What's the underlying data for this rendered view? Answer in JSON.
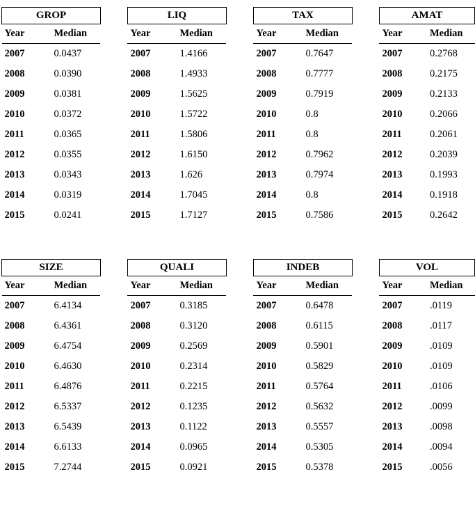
{
  "column_headers": {
    "year": "Year",
    "median": "Median"
  },
  "tables": [
    {
      "title": "GROP",
      "rows": [
        [
          "2007",
          "0.0437"
        ],
        [
          "2008",
          "0.0390"
        ],
        [
          "2009",
          "0.0381"
        ],
        [
          "2010",
          "0.0372"
        ],
        [
          "2011",
          "0.0365"
        ],
        [
          "2012",
          "0.0355"
        ],
        [
          "2013",
          "0.0343"
        ],
        [
          "2014",
          "0.0319"
        ],
        [
          "2015",
          "0.0241"
        ]
      ]
    },
    {
      "title": "LIQ",
      "rows": [
        [
          "2007",
          "1.4166"
        ],
        [
          "2008",
          "1.4933"
        ],
        [
          "2009",
          "1.5625"
        ],
        [
          "2010",
          "1.5722"
        ],
        [
          "2011",
          "1.5806"
        ],
        [
          "2012",
          "1.6150"
        ],
        [
          "2013",
          "1.626"
        ],
        [
          "2014",
          "1.7045"
        ],
        [
          "2015",
          "1.7127"
        ]
      ]
    },
    {
      "title": "TAX",
      "rows": [
        [
          "2007",
          "0.7647"
        ],
        [
          "2008",
          "0.7777"
        ],
        [
          "2009",
          "0.7919"
        ],
        [
          "2010",
          "0.8"
        ],
        [
          "2011",
          "0.8"
        ],
        [
          "2012",
          "0.7962"
        ],
        [
          "2013",
          "0.7974"
        ],
        [
          "2014",
          "0.8"
        ],
        [
          "2015",
          "0.7586"
        ]
      ]
    },
    {
      "title": "AMAT",
      "rows": [
        [
          "2007",
          "0.2768"
        ],
        [
          "2008",
          "0.2175"
        ],
        [
          "2009",
          "0.2133"
        ],
        [
          "2010",
          "0.2066"
        ],
        [
          "2011",
          "0.2061"
        ],
        [
          "2012",
          "0.2039"
        ],
        [
          "2013",
          "0.1993"
        ],
        [
          "2014",
          "0.1918"
        ],
        [
          "2015",
          "0.2642"
        ]
      ]
    },
    {
      "title": "SIZE",
      "rows": [
        [
          "2007",
          "6.4134"
        ],
        [
          "2008",
          "6.4361"
        ],
        [
          "2009",
          "6.4754"
        ],
        [
          "2010",
          "6.4630"
        ],
        [
          "2011",
          "6.4876"
        ],
        [
          "2012",
          "6.5337"
        ],
        [
          "2013",
          "6.5439"
        ],
        [
          "2014",
          "6.6133"
        ],
        [
          "2015",
          "7.2744"
        ]
      ]
    },
    {
      "title": "QUALI",
      "rows": [
        [
          "2007",
          "0.3185"
        ],
        [
          "2008",
          "0.3120"
        ],
        [
          "2009",
          "0.2569"
        ],
        [
          "2010",
          "0.2314"
        ],
        [
          "2011",
          "0.2215"
        ],
        [
          "2012",
          "0.1235"
        ],
        [
          "2013",
          "0.1122"
        ],
        [
          "2014",
          "0.0965"
        ],
        [
          "2015",
          "0.0921"
        ]
      ]
    },
    {
      "title": "INDEB",
      "rows": [
        [
          "2007",
          "0.6478"
        ],
        [
          "2008",
          "0.6115"
        ],
        [
          "2009",
          "0.5901"
        ],
        [
          "2010",
          "0.5829"
        ],
        [
          "2011",
          "0.5764"
        ],
        [
          "2012",
          "0.5632"
        ],
        [
          "2013",
          "0.5557"
        ],
        [
          "2014",
          "0.5305"
        ],
        [
          "2015",
          "0.5378"
        ]
      ]
    },
    {
      "title": "VOL",
      "rows": [
        [
          "2007",
          ".0119"
        ],
        [
          "2008",
          ".0117"
        ],
        [
          "2009",
          ".0109"
        ],
        [
          "2010",
          ".0109"
        ],
        [
          "2011",
          ".0106"
        ],
        [
          "2012",
          ".0099"
        ],
        [
          "2013",
          ".0098"
        ],
        [
          "2014",
          ".0094"
        ],
        [
          "2015",
          ".0056"
        ]
      ]
    }
  ],
  "layout": {
    "groups": [
      [
        0,
        1,
        2,
        3
      ],
      [
        4,
        5,
        6,
        7
      ]
    ]
  },
  "style": {
    "font_family": "Times New Roman",
    "font_size_pt": 11,
    "border_color": "#000000",
    "background_color": "#ffffff",
    "text_color": "#000000"
  }
}
